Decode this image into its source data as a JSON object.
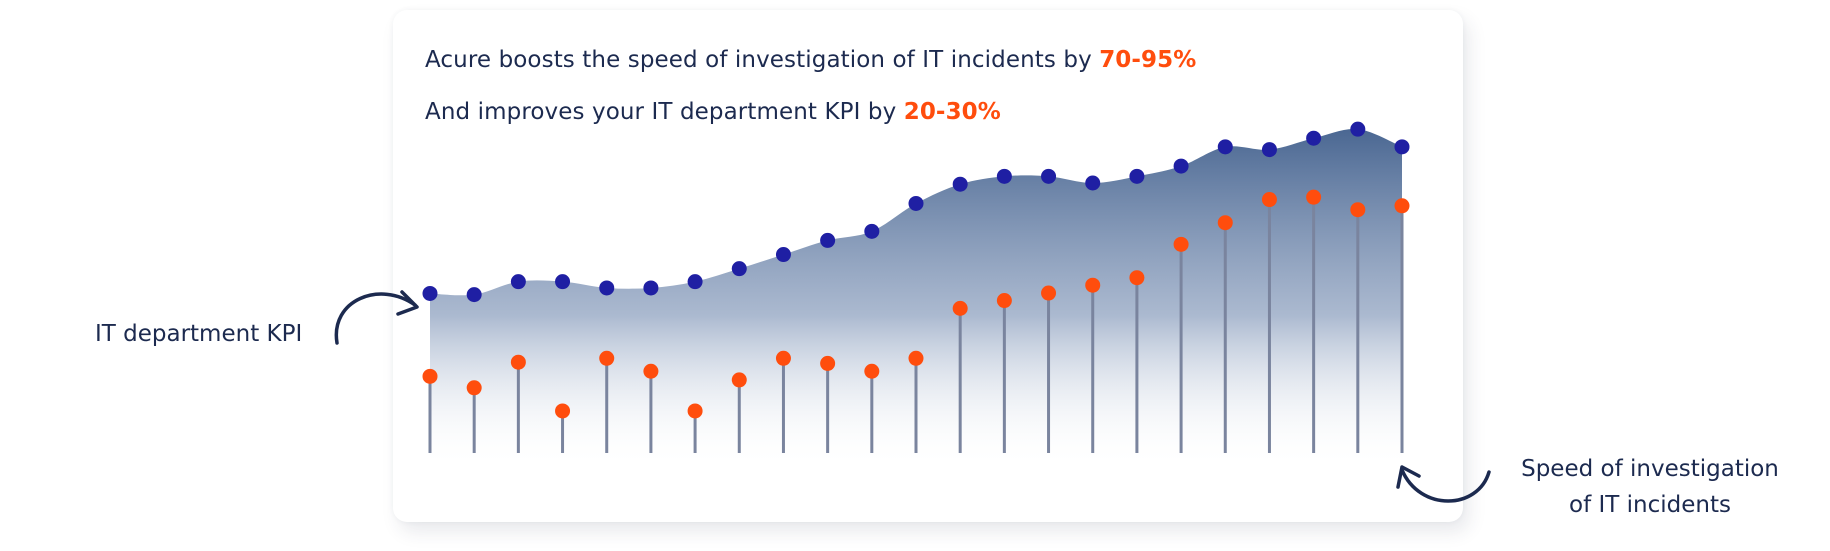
{
  "headline": {
    "line1_text": "Acure boosts the speed of investigation of IT incidents by ",
    "line1_accent": "70-95%",
    "line2_text": "And improves your IT department KPI by ",
    "line2_accent": "20-30%"
  },
  "labels": {
    "kpi": "IT department KPI",
    "speed_line1": "Speed of investigation",
    "speed_line2": "of IT incidents"
  },
  "colors": {
    "kpi_dot": "#1f1fa3",
    "speed_dot": "#ff4d0d",
    "stem": "#7a849e",
    "area_top": "#4a6792",
    "area_bottom": "#ffffff",
    "text": "#1c2a4f",
    "accent": "#ff4d0d"
  },
  "chart_data": {
    "type": "area",
    "x": [
      1,
      2,
      3,
      4,
      5,
      6,
      7,
      8,
      9,
      10,
      11,
      12,
      13,
      14,
      15,
      16,
      17,
      18,
      19,
      20,
      21,
      22,
      23
    ],
    "ylim": [
      0,
      100
    ],
    "grid": false,
    "series": [
      {
        "name": "IT department KPI",
        "style": "area-with-dots",
        "values": [
          40.6,
          40.3,
          43.6,
          43.6,
          42.0,
          42.0,
          43.6,
          46.9,
          50.5,
          54.1,
          56.4,
          63.5,
          68.4,
          70.4,
          70.4,
          68.7,
          70.4,
          73.0,
          77.9,
          77.2,
          80.1,
          82.4,
          77.9
        ]
      },
      {
        "name": "Speed of investigation of IT incidents",
        "style": "lollipop",
        "values": [
          19.5,
          16.6,
          23.1,
          10.7,
          24.1,
          20.8,
          10.7,
          18.6,
          24.1,
          22.8,
          20.8,
          24.1,
          36.8,
          38.8,
          40.7,
          42.7,
          44.6,
          53.1,
          58.6,
          64.5,
          65.1,
          61.9,
          62.9
        ]
      }
    ]
  }
}
